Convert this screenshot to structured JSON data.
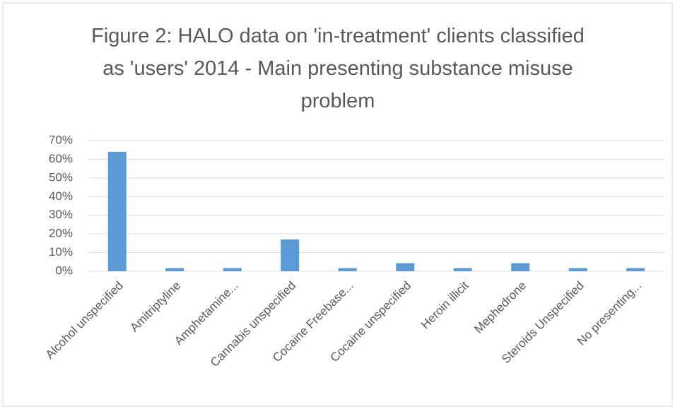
{
  "chart_data": {
    "type": "bar",
    "title": "Figure 2: HALO data on 'in-treatment' clients classified as 'users' 2014 - Main presenting substance misuse problem",
    "categories": [
      "Alcohol unspecified",
      "Amitriptyline",
      "Amphetamine...",
      "Cannabis unspecified",
      "Cocaine Freebase...",
      "Cocaine unspecified",
      "Heroin illicit",
      "Mephedrone",
      "Steroids Unspecified",
      "No presenting..."
    ],
    "values": [
      64,
      1.7,
      1.7,
      17,
      1.7,
      4.3,
      1.7,
      4.3,
      1.7,
      1.7
    ],
    "color": "#5b9bd5",
    "ylim": [
      0,
      70
    ],
    "yticks": [
      {
        "value": 0,
        "label": "0%"
      },
      {
        "value": 10,
        "label": "10%"
      },
      {
        "value": 20,
        "label": "20%"
      },
      {
        "value": 30,
        "label": "30%"
      },
      {
        "value": 40,
        "label": "40%"
      },
      {
        "value": 50,
        "label": "50%"
      },
      {
        "value": 60,
        "label": "60%"
      },
      {
        "value": 70,
        "label": "70%"
      }
    ],
    "grid": true
  }
}
